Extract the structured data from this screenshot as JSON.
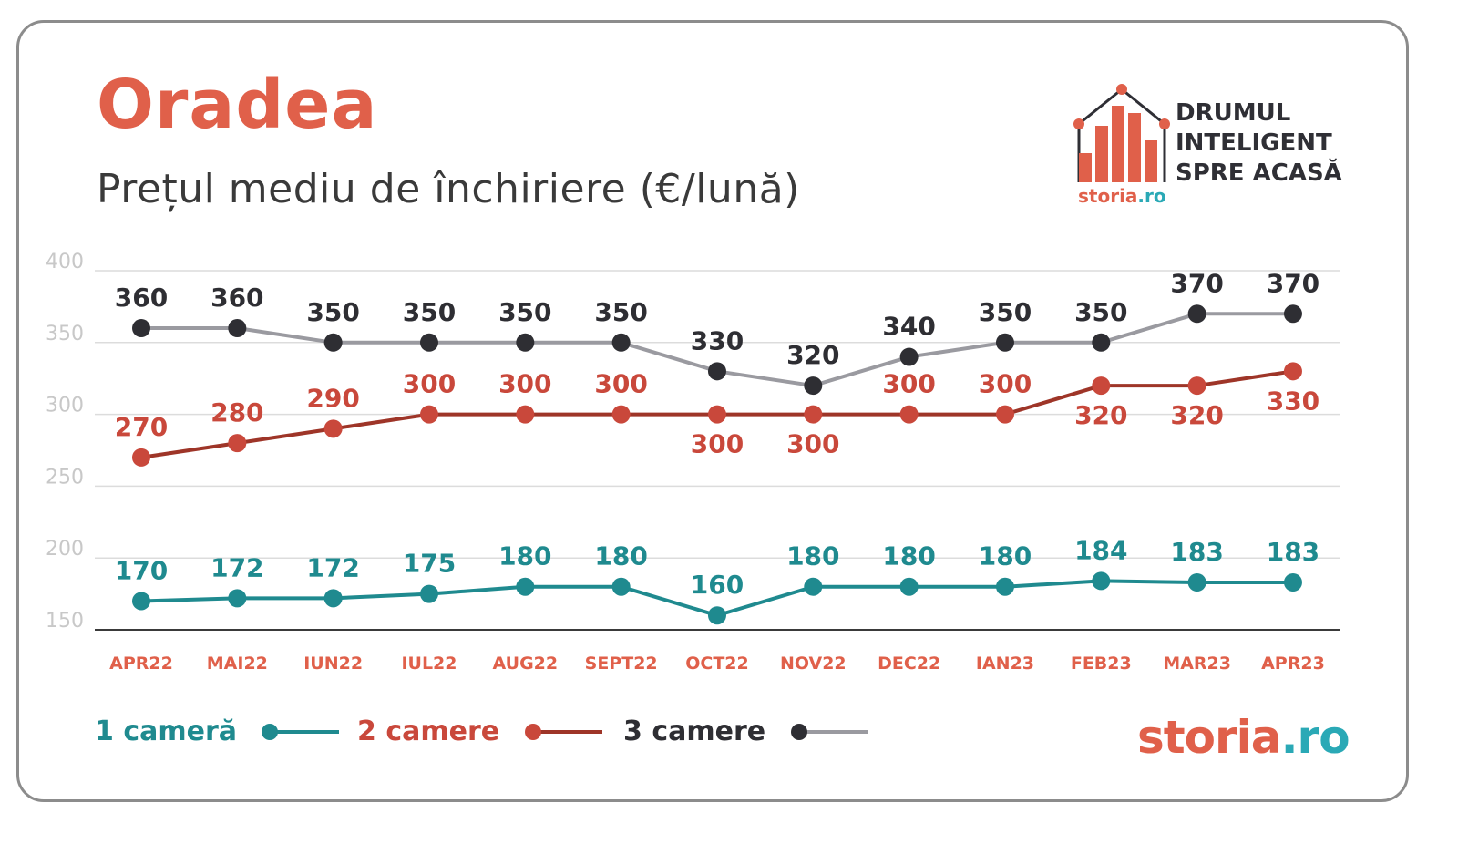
{
  "title": "Oradea",
  "subtitle": "Prețul mediu de închiriere (€/lună)",
  "brand": {
    "tagline": [
      "DRUMUL",
      "INTELIGENT",
      "SPRE ACASĂ"
    ],
    "small_logo": "storia",
    "small_logo_tld": ".ro",
    "logo": "storia",
    "logo_tld": ".ro",
    "accent": "#e0604a",
    "teal": "#2aa9b6"
  },
  "chart_data": {
    "type": "line",
    "categories": [
      "APR22",
      "MAI22",
      "IUN22",
      "IUL22",
      "AUG22",
      "SEPT22",
      "OCT22",
      "NOV22",
      "DEC22",
      "IAN23",
      "FEB23",
      "MAR23",
      "APR23"
    ],
    "yticks": [
      400,
      350,
      300,
      250,
      200,
      150
    ],
    "ylim": [
      150,
      400
    ],
    "grid": true,
    "legend": "bottom-left",
    "series": [
      {
        "name": "1 cameră",
        "values": [
          170,
          172,
          172,
          175,
          180,
          180,
          160,
          180,
          180,
          180,
          184,
          183,
          183
        ],
        "line_color": "#1f8a8f",
        "marker_color": "#1f8a8f",
        "label_color": "#1f8a8f"
      },
      {
        "name": "2 camere",
        "values": [
          270,
          280,
          290,
          300,
          300,
          300,
          300,
          300,
          300,
          300,
          320,
          320,
          330
        ],
        "line_color": "#9e3528",
        "marker_color": "#c9483b",
        "label_color": "#c9483b"
      },
      {
        "name": "3 camere",
        "values": [
          360,
          360,
          350,
          350,
          350,
          350,
          330,
          320,
          340,
          350,
          350,
          370,
          370
        ],
        "line_color": "#9a9aa0",
        "marker_color": "#2e2e33",
        "label_color": "#2e2e33"
      }
    ]
  }
}
